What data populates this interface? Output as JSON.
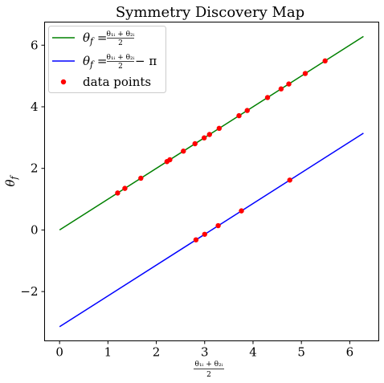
{
  "chart_data": {
    "type": "scatter",
    "title": "Symmetry Discovery Map",
    "xlabel": {
      "numerator": "θ₁ᵢ + θ₂ᵢ",
      "denominator": "2"
    },
    "ylabel": "θ_f",
    "xlim": [
      -0.31,
      6.6
    ],
    "ylim": [
      -3.6,
      6.75
    ],
    "xticks": [
      0,
      1,
      2,
      3,
      4,
      5,
      6
    ],
    "yticks": [
      -2,
      0,
      2,
      4,
      6
    ],
    "grid": false,
    "legend_position": "top-left",
    "series": [
      {
        "name": "θ_f = (θ₁ᵢ + θ₂ᵢ)/2",
        "kind": "line",
        "color": "#008000",
        "legend": {
          "lhs": "θ",
          "lhs_sub": "f",
          "eq": " = ",
          "numerator": "θ₁ᵢ + θ₂ᵢ",
          "denominator": "2",
          "suffix": ""
        },
        "x": [
          0,
          6.2832
        ],
        "y": [
          0,
          6.2832
        ]
      },
      {
        "name": "θ_f = (θ₁ᵢ + θ₂ᵢ)/2 − π",
        "kind": "line",
        "color": "#0000ff",
        "legend": {
          "lhs": "θ",
          "lhs_sub": "f",
          "eq": " = ",
          "numerator": "θ₁ᵢ + θ₂ᵢ",
          "denominator": "2",
          "suffix": " − π"
        },
        "x": [
          0,
          6.2832
        ],
        "y": [
          -3.1416,
          3.1416
        ]
      },
      {
        "name": "data points",
        "kind": "scatter",
        "color": "#ff0000",
        "legend": {
          "text": "data points"
        },
        "x": [
          1.2,
          1.35,
          1.68,
          2.22,
          2.28,
          2.56,
          2.8,
          2.99,
          3.1,
          3.3,
          3.71,
          3.88,
          4.3,
          4.58,
          4.74,
          5.08,
          5.49,
          2.82,
          3.0,
          3.28,
          3.76,
          4.76
        ],
        "y": [
          1.2,
          1.35,
          1.68,
          2.22,
          2.28,
          2.56,
          2.8,
          2.99,
          3.1,
          3.3,
          3.71,
          3.88,
          4.3,
          4.58,
          4.74,
          5.08,
          5.49,
          -0.32,
          -0.14,
          0.14,
          0.62,
          1.62
        ]
      }
    ]
  }
}
